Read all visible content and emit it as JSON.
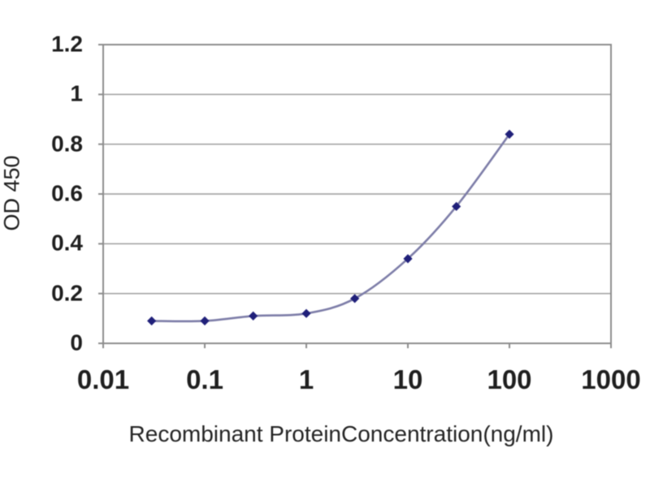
{
  "page": {
    "background": "#ffffff"
  },
  "chart_data": {
    "type": "line",
    "title": "",
    "xlabel": "Recombinant ProteinConcentration(ng/ml)",
    "ylabel": "OD 450",
    "x_scale": "log",
    "xlim": [
      0.01,
      1000
    ],
    "ylim": [
      0,
      1.2
    ],
    "x_tick_values": [
      0.01,
      0.1,
      1,
      10,
      100,
      1000
    ],
    "x_tick_labels": [
      "0.01",
      "0.1",
      "1",
      "10",
      "100",
      "1000"
    ],
    "y_tick_values": [
      0,
      0.2,
      0.4,
      0.6,
      0.8,
      1,
      1.2
    ],
    "y_tick_labels": [
      "0",
      "0.2",
      "0.4",
      "0.6",
      "0.8",
      "1",
      "1.2"
    ],
    "grid": "horizontal-only",
    "legend": "none",
    "series": [
      {
        "name": "OD 450",
        "marker": "diamond",
        "x": [
          0.03,
          0.1,
          0.3,
          1,
          3,
          10,
          30,
          100
        ],
        "y": [
          0.09,
          0.09,
          0.11,
          0.12,
          0.18,
          0.34,
          0.55,
          0.84
        ]
      }
    ],
    "colors": {
      "marker": "#20207a",
      "line": "#7d7da8",
      "gridline": "#a6a6a6",
      "axis_border": "#8c8c8c",
      "text": "#1f1f1f"
    }
  }
}
